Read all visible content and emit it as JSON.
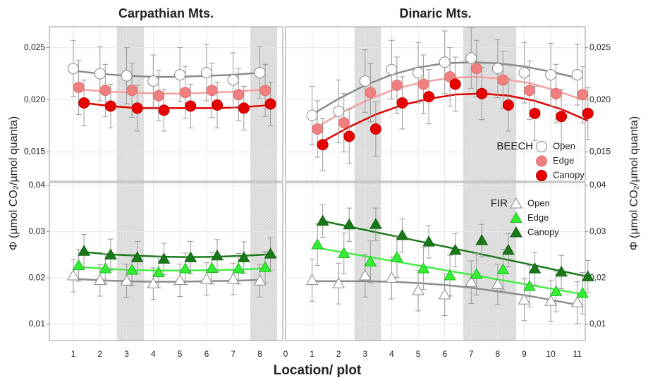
{
  "figure": {
    "xlabel": "Location/ plot",
    "ylabel": "Φ (µmol CO₂/µmol quanta)"
  },
  "chart_data": [
    {
      "type": "scatter",
      "title": "Carpathian Mts.",
      "marker": "circle",
      "xlim": [
        0.1,
        8.86
      ],
      "xticks": [
        1,
        2,
        3,
        4,
        5,
        6,
        7,
        8
      ],
      "ylim": [
        0.0122,
        0.027
      ],
      "yticks": [
        {
          "value": 0.015,
          "label": "0,015"
        },
        {
          "value": 0.02,
          "label": "0,020"
        },
        {
          "value": 0.025,
          "label": "0,025"
        }
      ],
      "grid": true,
      "shade": [
        [
          2.63,
          3.65
        ],
        [
          7.64,
          8.65
        ]
      ],
      "series": [
        {
          "name": "Open",
          "color": "#ffffff",
          "stroke": "#888888",
          "trend_color": "#8c8c8c",
          "x": [
            1,
            2,
            3,
            4,
            5,
            6,
            7,
            8
          ],
          "values": [
            0.023,
            0.0225,
            0.0223,
            0.0218,
            0.0224,
            0.0226,
            0.0219,
            0.0226
          ],
          "errors": [
            0.0027,
            0.0026,
            0.0027,
            0.0025,
            0.0026,
            0.0027,
            0.0026,
            0.0025
          ],
          "trend": [
            0.0228,
            0.0225,
            0.0223,
            0.0222,
            0.0222,
            0.0223,
            0.0224,
            0.0226
          ]
        },
        {
          "name": "Edge",
          "color": "#f08080",
          "stroke": "#e07070",
          "trend_color": "#f4a0a0",
          "x": [
            1.2,
            2.2,
            3.2,
            4.2,
            5.2,
            6.2,
            7.2,
            8.2
          ],
          "values": [
            0.0212,
            0.0209,
            0.0209,
            0.0204,
            0.0207,
            0.0209,
            0.0205,
            0.0209
          ],
          "errors": [
            0.0026,
            0.0025,
            0.0026,
            0.0024,
            0.0025,
            0.0026,
            0.0025,
            0.0025
          ],
          "trend": [
            0.021,
            0.0208,
            0.0207,
            0.0206,
            0.0206,
            0.0207,
            0.0208,
            0.021
          ]
        },
        {
          "name": "Canopy",
          "color": "#e60000",
          "stroke": "#c00000",
          "trend_color": "#e00000",
          "x": [
            1.4,
            2.4,
            3.4,
            4.4,
            5.4,
            6.4,
            7.4,
            8.4
          ],
          "values": [
            0.0197,
            0.0194,
            0.0192,
            0.019,
            0.0194,
            0.0195,
            0.0192,
            0.0196
          ],
          "errors": [
            0.0022,
            0.0021,
            0.0022,
            0.002,
            0.0021,
            0.0022,
            0.0021,
            0.0021
          ],
          "trend": [
            0.0197,
            0.0194,
            0.0192,
            0.0192,
            0.0192,
            0.0192,
            0.0193,
            0.0195
          ]
        }
      ]
    },
    {
      "type": "scatter",
      "title": "Dinaric Mts.",
      "marker": "circle",
      "legend": true,
      "legend_title": "BEECH",
      "xlim": [
        0,
        11.3
      ],
      "xticks": [
        0,
        1,
        2,
        3,
        4,
        5,
        6,
        7,
        8,
        9,
        10,
        11
      ],
      "ylim": [
        0.0122,
        0.027
      ],
      "yticks": [
        {
          "value": 0.015,
          "label": "0,015"
        },
        {
          "value": 0.02,
          "label": "0,020"
        },
        {
          "value": 0.025,
          "label": "0,025"
        }
      ],
      "grid": true,
      "shade": [
        [
          2.6,
          3.6
        ],
        [
          6.7,
          8.7
        ]
      ],
      "series": [
        {
          "name": "Open",
          "color": "#ffffff",
          "stroke": "#888888",
          "trend_color": "#8c8c8c",
          "x": [
            1,
            2,
            3,
            4,
            5,
            6,
            7,
            8,
            9,
            10,
            11
          ],
          "values": [
            0.0185,
            0.0189,
            0.0218,
            0.0229,
            0.0226,
            0.0236,
            0.024,
            0.023,
            0.0226,
            0.0224,
            0.0224
          ],
          "errors": [
            0.0028,
            0.003,
            0.003,
            0.0028,
            0.0029,
            0.003,
            0.0029,
            0.0028,
            0.0029,
            0.003,
            0.0029
          ],
          "trend": [
            0.0186,
            0.0201,
            0.0214,
            0.0224,
            0.0231,
            0.0235,
            0.0236,
            0.0235,
            0.0232,
            0.0227,
            0.0221
          ]
        },
        {
          "name": "Edge",
          "color": "#f08080",
          "stroke": "#e07070",
          "trend_color": "#f4a0a0",
          "x": [
            1.2,
            2.2,
            3.2,
            4.2,
            5.2,
            6.2,
            7.2,
            8.2,
            9.2,
            10.2,
            11.2
          ],
          "values": [
            0.0172,
            0.0178,
            0.0207,
            0.0214,
            0.0215,
            0.0222,
            0.023,
            0.0219,
            0.0209,
            0.0206,
            0.0205
          ],
          "errors": [
            0.0027,
            0.0028,
            0.0028,
            0.0027,
            0.0028,
            0.0028,
            0.0027,
            0.0027,
            0.0028,
            0.0028,
            0.0027
          ],
          "trend": [
            0.0174,
            0.0189,
            0.0201,
            0.0211,
            0.0217,
            0.0221,
            0.0222,
            0.022,
            0.0216,
            0.0209,
            0.02
          ]
        },
        {
          "name": "Canopy",
          "color": "#e60000",
          "stroke": "#c00000",
          "trend_color": "#e00000",
          "x": [
            1.4,
            2.4,
            3.4,
            4.4,
            5.4,
            6.4,
            7.4,
            8.4,
            9.4,
            10.4,
            11.4
          ],
          "values": [
            0.0157,
            0.0165,
            0.0172,
            0.0197,
            0.0203,
            0.0215,
            0.0206,
            0.0195,
            0.0187,
            0.0184,
            0.0187
          ],
          "errors": [
            0.0025,
            0.0026,
            0.0026,
            0.0025,
            0.0026,
            0.0026,
            0.0025,
            0.0025,
            0.0026,
            0.0026,
            0.0025
          ],
          "trend": [
            0.016,
            0.0174,
            0.0186,
            0.0195,
            0.0201,
            0.0205,
            0.0206,
            0.0204,
            0.0199,
            0.0191,
            0.018
          ]
        }
      ]
    },
    {
      "type": "scatter",
      "marker": "triangle",
      "xlim": [
        0.1,
        8.86
      ],
      "xticks": [
        1,
        2,
        3,
        4,
        5,
        6,
        7,
        8
      ],
      "ylim": [
        0.0065,
        0.0406
      ],
      "yticks": [
        {
          "value": 0.01,
          "label": "0,01"
        },
        {
          "value": 0.02,
          "label": "0,02"
        },
        {
          "value": 0.03,
          "label": "0,03"
        },
        {
          "value": 0.04,
          "label": "0,04"
        }
      ],
      "grid": true,
      "shade": [
        [
          2.63,
          3.65
        ],
        [
          7.64,
          8.65
        ]
      ],
      "series": [
        {
          "name": "Open",
          "color": "#ffffff",
          "stroke": "#888888",
          "trend_color": "#8c8c8c",
          "x": [
            1,
            2,
            3,
            4,
            5,
            6,
            7,
            8
          ],
          "values": [
            0.0205,
            0.0195,
            0.0194,
            0.0188,
            0.0195,
            0.0198,
            0.0198,
            0.0194
          ],
          "errors": [
            0.0035,
            0.0034,
            0.0036,
            0.0034,
            0.0035,
            0.0035,
            0.0034,
            0.0035
          ],
          "trend": [
            0.0198,
            0.0195,
            0.0193,
            0.0192,
            0.0192,
            0.0193,
            0.0194,
            0.0196
          ]
        },
        {
          "name": "Edge",
          "color": "#33ee33",
          "stroke": "#22bb22",
          "trend_color": "#44ee44",
          "x": [
            1.2,
            2.2,
            3.2,
            4.2,
            5.2,
            6.2,
            7.2,
            8.2
          ],
          "values": [
            0.0227,
            0.022,
            0.0217,
            0.0212,
            0.022,
            0.0221,
            0.022,
            0.0223
          ],
          "errors": [
            0.0034,
            0.0033,
            0.0034,
            0.0033,
            0.0034,
            0.0034,
            0.0033,
            0.0034
          ],
          "trend": [
            0.0224,
            0.022,
            0.0217,
            0.0216,
            0.0216,
            0.0217,
            0.0218,
            0.0221
          ]
        },
        {
          "name": "Canopy",
          "color": "#1a7a1a",
          "stroke": "#106010",
          "trend_color": "#1a7a1a",
          "x": [
            1.4,
            2.4,
            3.4,
            4.4,
            5.4,
            6.4,
            7.4,
            8.4
          ],
          "values": [
            0.0258,
            0.025,
            0.0244,
            0.0241,
            0.0244,
            0.0248,
            0.0244,
            0.0252
          ],
          "errors": [
            0.0036,
            0.0034,
            0.0035,
            0.0034,
            0.0035,
            0.0035,
            0.0034,
            0.0035
          ],
          "trend": [
            0.0256,
            0.0251,
            0.0248,
            0.0246,
            0.0245,
            0.0246,
            0.0248,
            0.0251
          ]
        }
      ]
    },
    {
      "type": "scatter",
      "marker": "triangle",
      "legend": true,
      "legend_title": "FIR",
      "xlim": [
        0,
        11.3
      ],
      "xticks": [
        0,
        1,
        2,
        3,
        4,
        5,
        6,
        7,
        8,
        9,
        10,
        11
      ],
      "ylim": [
        0.0065,
        0.0406
      ],
      "yticks": [
        {
          "value": 0.01,
          "label": "0,01"
        },
        {
          "value": 0.02,
          "label": "0,02"
        },
        {
          "value": 0.03,
          "label": "0,03"
        },
        {
          "value": 0.04,
          "label": "0,04"
        }
      ],
      "grid": true,
      "shade": [
        [
          2.6,
          3.6
        ],
        [
          6.7,
          8.7
        ]
      ],
      "series": [
        {
          "name": "Open",
          "color": "#ffffff",
          "stroke": "#888888",
          "trend_color": "#8c8c8c",
          "x": [
            1,
            2,
            3,
            4,
            5,
            6,
            7,
            8,
            9,
            10,
            11
          ],
          "values": [
            0.0195,
            0.0188,
            0.0205,
            0.02,
            0.0173,
            0.0164,
            0.0191,
            0.0186,
            0.0153,
            0.015,
            0.0147
          ],
          "errors": [
            0.0045,
            0.0044,
            0.0046,
            0.0045,
            0.0044,
            0.0045,
            0.0046,
            0.0044,
            0.0045,
            0.0044,
            0.0045
          ],
          "trend": [
            0.0193,
            0.0193,
            0.0193,
            0.0192,
            0.0189,
            0.0185,
            0.0179,
            0.0171,
            0.0163,
            0.0153,
            0.0142
          ]
        },
        {
          "name": "Edge",
          "color": "#33ee33",
          "stroke": "#22bb22",
          "trend_color": "#44ee44",
          "x": [
            1.2,
            2.2,
            3.2,
            4.2,
            5.2,
            6.2,
            7.2,
            8.2,
            9.2,
            10.2,
            11.2
          ],
          "values": [
            0.0272,
            0.0253,
            0.0235,
            0.0245,
            0.022,
            0.0205,
            0.0208,
            0.0218,
            0.0182,
            0.0171,
            0.0167
          ],
          "errors": [
            0.0045,
            0.0044,
            0.0045,
            0.0044,
            0.0045,
            0.0044,
            0.0045,
            0.0044,
            0.0045,
            0.0044,
            0.0045
          ],
          "trend": [
            0.0265,
            0.0255,
            0.0245,
            0.0235,
            0.0225,
            0.0215,
            0.0205,
            0.0195,
            0.0185,
            0.0175,
            0.0165
          ]
        },
        {
          "name": "Canopy",
          "color": "#1a7a1a",
          "stroke": "#106010",
          "trend_color": "#1a7a1a",
          "x": [
            1.4,
            2.4,
            3.4,
            4.4,
            5.4,
            6.4,
            7.4,
            8.4,
            9.4,
            10.4,
            11.4
          ],
          "values": [
            0.0323,
            0.0315,
            0.0316,
            0.0292,
            0.0278,
            0.026,
            0.0281,
            0.026,
            0.022,
            0.0213,
            0.0203
          ],
          "errors": [
            0.0035,
            0.0036,
            0.0035,
            0.0036,
            0.0035,
            0.0036,
            0.0035,
            0.0036,
            0.0035,
            0.0036,
            0.0035
          ],
          "trend": [
            0.0323,
            0.0311,
            0.0299,
            0.0287,
            0.0275,
            0.0263,
            0.0251,
            0.0239,
            0.0227,
            0.0215,
            0.0203
          ]
        }
      ]
    }
  ]
}
